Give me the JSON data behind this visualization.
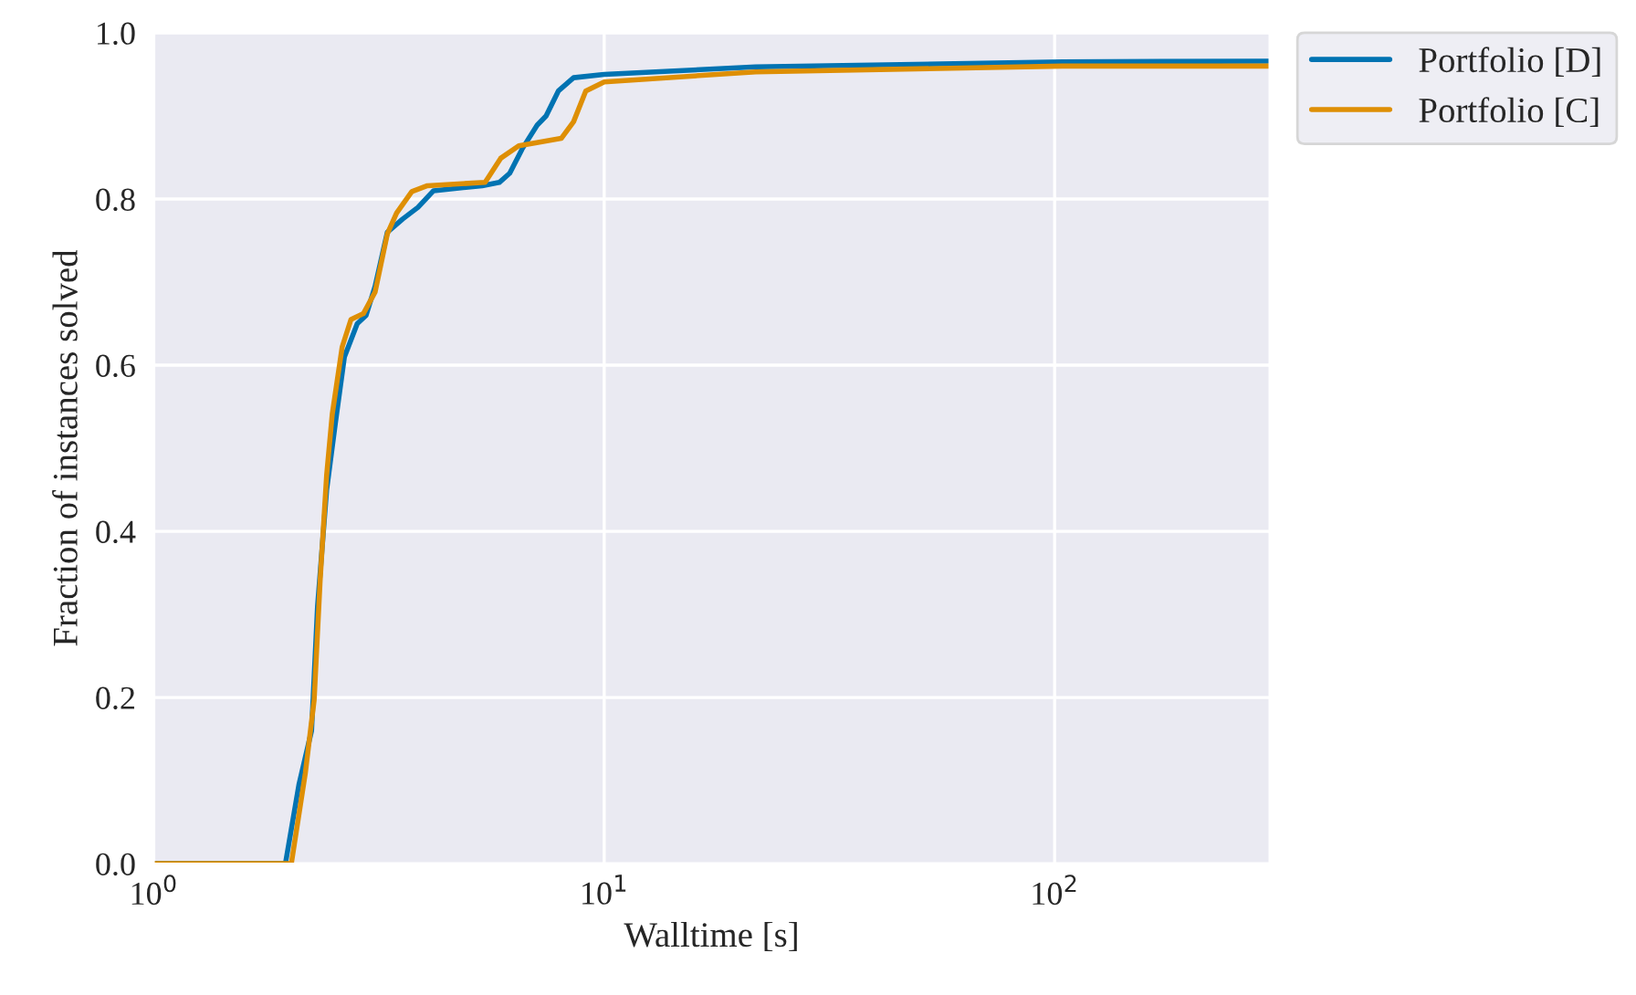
{
  "chart_data": {
    "type": "line",
    "xlabel": "Walltime [s]",
    "ylabel": "Fraction of instances solved",
    "log": "x",
    "xlim": [
      1,
      300
    ],
    "ylim": [
      0,
      1.0
    ],
    "xticks": [
      {
        "value": 1,
        "label": "10$^{0}$"
      },
      {
        "value": 10,
        "label": "10$^{1}$"
      },
      {
        "value": 100,
        "label": "10$^{2}$"
      }
    ],
    "yticks": [
      {
        "value": 0,
        "label": "0.0"
      },
      {
        "value": 0.2,
        "label": "0.2"
      },
      {
        "value": 0.4,
        "label": "0.4"
      },
      {
        "value": 0.6,
        "label": "0.6"
      },
      {
        "value": 0.8,
        "label": "0.8"
      },
      {
        "value": 1.0,
        "label": "1.0"
      }
    ],
    "grid": true,
    "legend": "top right",
    "series": [
      {
        "name": "Portfolio [D]",
        "color": "#0173b2",
        "x": [
          1,
          1.96,
          2.1,
          2.24,
          2.31,
          2.42,
          2.53,
          2.65,
          2.83,
          2.96,
          3.1,
          3.3,
          3.57,
          3.86,
          4.18,
          5.36,
          5.85,
          6.17,
          6.57,
          7.1,
          7.43,
          7.91,
          8.55,
          10,
          21.7,
          104,
          300
        ],
        "values": [
          0,
          0,
          0.095,
          0.16,
          0.31,
          0.45,
          0.53,
          0.61,
          0.65,
          0.66,
          0.695,
          0.76,
          0.776,
          0.79,
          0.81,
          0.816,
          0.82,
          0.831,
          0.86,
          0.889,
          0.9,
          0.93,
          0.946,
          0.95,
          0.959,
          0.965,
          0.966
        ]
      },
      {
        "name": "Portfolio [C]",
        "color": "#de8f05",
        "x": [
          1,
          2.02,
          2.17,
          2.27,
          2.34,
          2.42,
          2.49,
          2.62,
          2.74,
          2.92,
          3.1,
          3.3,
          3.46,
          3.74,
          4.05,
          5.44,
          5.89,
          6.46,
          8.03,
          8.55,
          9.1,
          10,
          21.7,
          104,
          300
        ],
        "values": [
          0,
          0,
          0.109,
          0.197,
          0.34,
          0.468,
          0.541,
          0.622,
          0.655,
          0.662,
          0.688,
          0.758,
          0.783,
          0.809,
          0.816,
          0.82,
          0.849,
          0.864,
          0.873,
          0.893,
          0.93,
          0.941,
          0.953,
          0.96,
          0.96
        ]
      }
    ]
  }
}
